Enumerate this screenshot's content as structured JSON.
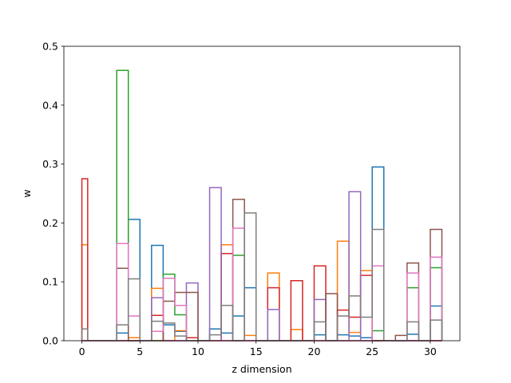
{
  "chart_data": {
    "type": "histogram-step",
    "xlabel": "z dimension",
    "ylabel": "w",
    "xlim": [
      -1.55,
      32.55
    ],
    "ylim": [
      0,
      0.5
    ],
    "xticks": [
      0,
      5,
      10,
      15,
      20,
      25,
      30
    ],
    "yticks": [
      0.0,
      0.1,
      0.2,
      0.3,
      0.4,
      0.5
    ],
    "xtick_labels": [
      "0",
      "5",
      "10",
      "15",
      "20",
      "25",
      "30"
    ],
    "ytick_labels": [
      "0.0",
      "0.1",
      "0.2",
      "0.3",
      "0.4",
      "0.5"
    ],
    "bin_edges": [
      0,
      0.5,
      1,
      1.5,
      2,
      2.5,
      3,
      3.5,
      4,
      4.5,
      5,
      5.5,
      6,
      6.5,
      7,
      7.5,
      8,
      8.5,
      9,
      9.5,
      10,
      10.5,
      11,
      11.5,
      12,
      12.5,
      13,
      13.5,
      14,
      14.5,
      15,
      15.5,
      16,
      16.5,
      17,
      17.5,
      18,
      18.5,
      19,
      19.5,
      20,
      20.5,
      21,
      21.5,
      22,
      22.5,
      23,
      23.5,
      24,
      24.5,
      25,
      25.5,
      26,
      26.5,
      27,
      27.5,
      28,
      28.5,
      29,
      29.5,
      30,
      30.5,
      31
    ],
    "series": [
      {
        "color": "#1f77b4",
        "values": [
          0,
          0,
          0,
          0,
          0,
          0,
          0.013,
          0.013,
          0.206,
          0.206,
          0,
          0,
          0.162,
          0.162,
          0.027,
          0.027,
          0.016,
          0.016,
          0,
          0,
          0,
          0,
          0.02,
          0.02,
          0.013,
          0.013,
          0.042,
          0.042,
          0.09,
          0.09,
          0,
          0,
          0,
          0,
          0,
          0,
          0,
          0,
          0,
          0,
          0.01,
          0.01,
          0,
          0,
          0.01,
          0.01,
          0.008,
          0.008,
          0.005,
          0.005,
          0.295,
          0.295,
          0,
          0,
          0,
          0,
          0.011,
          0.011,
          0,
          0,
          0.059,
          0.059
        ]
      },
      {
        "color": "#ff7f0e",
        "values": [
          0.163,
          0,
          0,
          0,
          0,
          0,
          0,
          0,
          0.005,
          0.005,
          0,
          0,
          0.089,
          0.089,
          0,
          0,
          0.017,
          0.017,
          0,
          0,
          0,
          0,
          0,
          0,
          0.163,
          0.163,
          0,
          0,
          0.009,
          0.009,
          0,
          0,
          0.115,
          0.115,
          0,
          0,
          0.019,
          0.019,
          0,
          0,
          0,
          0,
          0,
          0,
          0.169,
          0.169,
          0.014,
          0.014,
          0.119,
          0.119,
          0,
          0,
          0,
          0,
          0,
          0,
          0,
          0,
          0,
          0,
          0,
          0
        ]
      },
      {
        "color": "#2ca02c",
        "values": [
          0,
          0,
          0,
          0,
          0,
          0,
          0.459,
          0.459,
          0,
          0,
          0,
          0,
          0,
          0,
          0.113,
          0.113,
          0.044,
          0.044,
          0,
          0,
          0,
          0,
          0,
          0,
          0,
          0,
          0.145,
          0.145,
          0,
          0,
          0,
          0,
          0,
          0,
          0,
          0,
          0,
          0,
          0,
          0,
          0,
          0,
          0,
          0,
          0,
          0,
          0,
          0,
          0,
          0,
          0.017,
          0.017,
          0,
          0,
          0,
          0,
          0.09,
          0.09,
          0,
          0,
          0.124,
          0.124
        ]
      },
      {
        "color": "#d62728",
        "values": [
          0.275,
          0,
          0,
          0,
          0,
          0,
          0,
          0,
          0,
          0,
          0,
          0,
          0.043,
          0.043,
          0,
          0,
          0,
          0,
          0.005,
          0.005,
          0,
          0,
          0,
          0,
          0.148,
          0.148,
          0,
          0,
          0,
          0,
          0,
          0,
          0.09,
          0.09,
          0,
          0,
          0.102,
          0.102,
          0,
          0,
          0.127,
          0.127,
          0,
          0,
          0.052,
          0.052,
          0.04,
          0.04,
          0.111,
          0.111,
          0,
          0,
          0,
          0,
          0,
          0,
          0,
          0,
          0,
          0,
          0,
          0
        ]
      },
      {
        "color": "#9467bd",
        "values": [
          0,
          0,
          0,
          0,
          0,
          0,
          0,
          0,
          0,
          0,
          0,
          0,
          0.073,
          0.073,
          0,
          0,
          0,
          0,
          0.098,
          0.098,
          0,
          0,
          0.26,
          0.26,
          0,
          0,
          0,
          0,
          0,
          0,
          0,
          0,
          0.053,
          0.053,
          0,
          0,
          0,
          0,
          0,
          0,
          0.07,
          0.07,
          0,
          0,
          0,
          0,
          0.253,
          0.253,
          0,
          0,
          0,
          0,
          0,
          0,
          0,
          0,
          0,
          0,
          0,
          0,
          0,
          0
        ]
      },
      {
        "color": "#8c564b",
        "values": [
          0,
          0,
          0,
          0,
          0,
          0,
          0.123,
          0.123,
          0,
          0,
          0,
          0,
          0,
          0,
          0.067,
          0.067,
          0.082,
          0.082,
          0.082,
          0.082,
          0,
          0,
          0,
          0,
          0,
          0,
          0.24,
          0.24,
          0,
          0,
          0,
          0,
          0,
          0,
          0,
          0,
          0,
          0,
          0,
          0,
          0,
          0,
          0.08,
          0.08,
          0,
          0,
          0,
          0,
          0,
          0,
          0,
          0,
          0,
          0,
          0.009,
          0.009,
          0.132,
          0.132,
          0,
          0,
          0.189,
          0.189
        ]
      },
      {
        "color": "#e377c2",
        "values": [
          0,
          0,
          0,
          0,
          0,
          0,
          0.165,
          0.165,
          0.042,
          0.042,
          0,
          0,
          0.016,
          0.016,
          0.106,
          0.106,
          0.06,
          0.06,
          0,
          0,
          0,
          0,
          0,
          0,
          0,
          0,
          0.191,
          0.191,
          0,
          0,
          0,
          0,
          0,
          0,
          0,
          0,
          0,
          0,
          0,
          0,
          0,
          0,
          0,
          0,
          0,
          0,
          0,
          0,
          0,
          0,
          0.127,
          0.127,
          0,
          0,
          0,
          0,
          0.115,
          0.115,
          0,
          0,
          0.142,
          0.142
        ]
      },
      {
        "color": "#7f7f7f",
        "values": [
          0.02,
          0,
          0,
          0,
          0,
          0,
          0.027,
          0.027,
          0.105,
          0.105,
          0,
          0,
          0.033,
          0.033,
          0.03,
          0.03,
          0.008,
          0.008,
          0,
          0,
          0,
          0,
          0.01,
          0.01,
          0.06,
          0.06,
          0,
          0,
          0.217,
          0.217,
          0,
          0,
          0,
          0,
          0,
          0,
          0,
          0,
          0,
          0,
          0.032,
          0.032,
          0,
          0,
          0.042,
          0.042,
          0.076,
          0.076,
          0.04,
          0.04,
          0.189,
          0.189,
          0,
          0,
          0,
          0,
          0.032,
          0.032,
          0,
          0,
          0.035,
          0.035
        ]
      }
    ]
  }
}
